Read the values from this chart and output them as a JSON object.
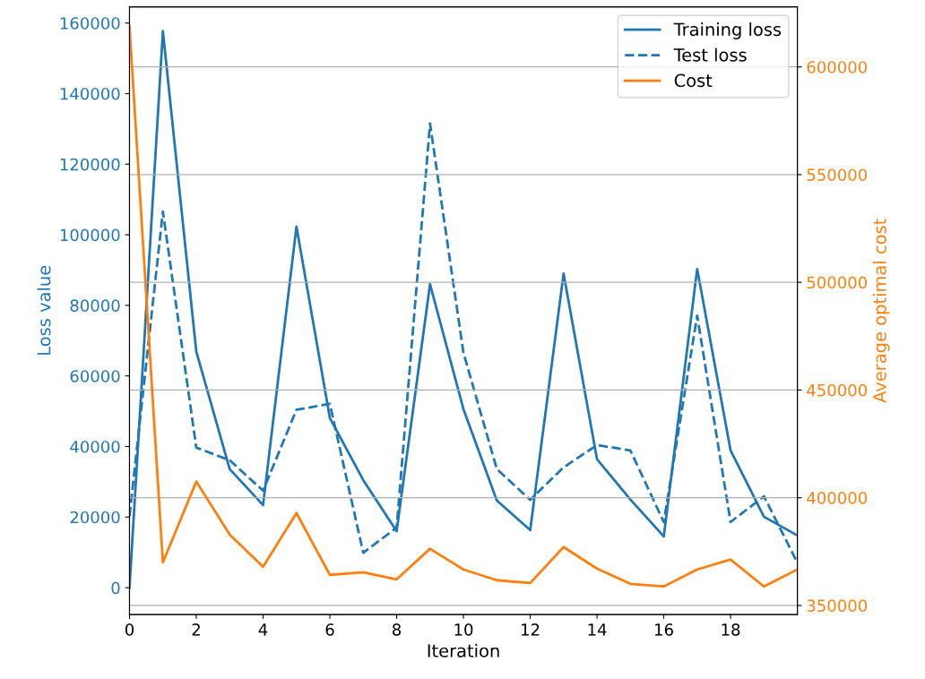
{
  "chart_data": {
    "type": "line",
    "xlabel": "Iteration",
    "ylabel": "Loss value",
    "y2label": "Average optimal cost",
    "x": [
      0,
      1,
      2,
      3,
      4,
      5,
      6,
      7,
      8,
      9,
      10,
      11,
      12,
      13,
      14,
      15,
      16,
      17,
      18,
      19,
      20
    ],
    "series": [
      {
        "name": "Training loss",
        "color": "#1f77b4",
        "line_style": "solid",
        "axis": "y",
        "values": [
          0,
          157700,
          66900,
          33600,
          23400,
          102300,
          48100,
          30500,
          16000,
          86000,
          50600,
          24700,
          16300,
          89000,
          36400,
          25000,
          14500,
          90300,
          38900,
          20100,
          14800
        ]
      },
      {
        "name": "Test loss",
        "color": "#1f77b4",
        "line_style": "dashed",
        "axis": "y",
        "values": [
          20300,
          106600,
          39700,
          36100,
          27500,
          50400,
          52100,
          9900,
          17000,
          131500,
          66600,
          33600,
          24900,
          34100,
          40400,
          38900,
          18600,
          77100,
          18600,
          25900,
          7100
        ]
      },
      {
        "name": "Cost",
        "color": "#ff7f0e",
        "line_style": "solid",
        "axis": "y2",
        "values": [
          618800,
          370000,
          407500,
          382900,
          367900,
          392900,
          364200,
          365400,
          362100,
          376300,
          366700,
          361700,
          360400,
          377100,
          367100,
          360000,
          358800,
          366700,
          371300,
          358800,
          366700
        ]
      }
    ],
    "xlim": [
      0,
      20
    ],
    "xticks": [
      0,
      2,
      4,
      6,
      8,
      10,
      12,
      14,
      16,
      18
    ],
    "ylim": [
      -7600,
      164600
    ],
    "yticks": [
      0,
      20000,
      40000,
      60000,
      80000,
      100000,
      120000,
      140000,
      160000
    ],
    "y2lim": [
      345800,
      627900
    ],
    "y2ticks": [
      350000,
      400000,
      450000,
      500000,
      550000,
      600000
    ],
    "grid": "y2",
    "legend": "top right",
    "marker": "none"
  }
}
